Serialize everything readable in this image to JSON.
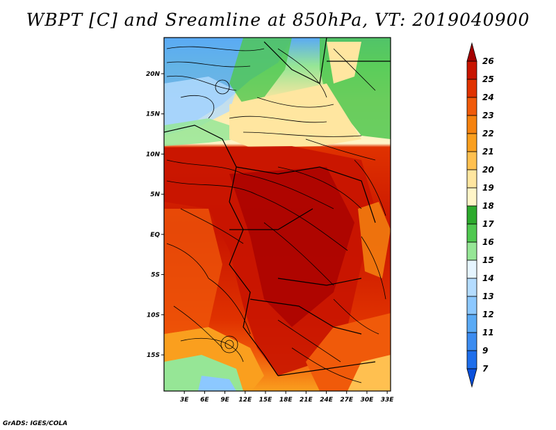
{
  "title": "WBPT [C] and Sreamline at 850hPa, VT: 2019040900",
  "footer": "GrADS: IGES/COLA",
  "map": {
    "lat_ticks": [
      "20N",
      "15N",
      "10N",
      "5N",
      "EQ",
      "5S",
      "10S",
      "15S"
    ],
    "lon_ticks": [
      "3E",
      "6E",
      "9E",
      "12E",
      "15E",
      "18E",
      "21E",
      "24E",
      "27E",
      "30E",
      "33E"
    ],
    "lat_range": [
      -19.5,
      24.5
    ],
    "lon_range": [
      0,
      33.5
    ]
  },
  "colorbar": {
    "labels": [
      "26",
      "25",
      "24",
      "23",
      "22",
      "21",
      "20",
      "19",
      "18",
      "17",
      "16",
      "15",
      "14",
      "13",
      "12",
      "11",
      "9",
      "7"
    ],
    "colors": [
      "#a50000",
      "#c81400",
      "#e03200",
      "#f05a0a",
      "#f5820f",
      "#fa9f1e",
      "#ffc050",
      "#ffe6a0",
      "#fff5c8",
      "#2daa2d",
      "#50c850",
      "#96e696",
      "#e6f5ff",
      "#b4dcff",
      "#8cc8ff",
      "#5aaaf5",
      "#3c8cf0",
      "#1e6eeb",
      "#0a50dc"
    ]
  }
}
